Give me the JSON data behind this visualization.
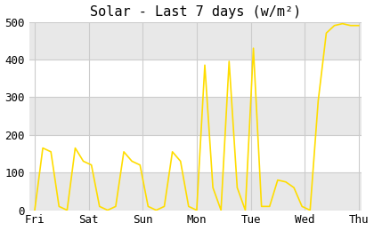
{
  "title": "Solar - Last 7 days (w/m²)",
  "line_color": "#ffdd00",
  "background_color": "#ffffff",
  "plot_bg_color": "#ffffff",
  "grid_color": "#cccccc",
  "band_color": "#e8e8e8",
  "tick_label_color": "#000000",
  "font_family": "monospace",
  "xlabels": [
    "Fri",
    "Sat",
    "Sun",
    "Mon",
    "Tue",
    "Wed",
    "Thu"
  ],
  "ylim": [
    0,
    500
  ],
  "yticks": [
    0,
    100,
    200,
    300,
    400,
    500
  ],
  "x": [
    0,
    1,
    2,
    3,
    4,
    5,
    6,
    7,
    8,
    9,
    10,
    11,
    12,
    13,
    14,
    15,
    16,
    17,
    18,
    19,
    20,
    21,
    22,
    23,
    24,
    25,
    26,
    27,
    28,
    29,
    30,
    31,
    32,
    33,
    34,
    35,
    36,
    37,
    38,
    39,
    40
  ],
  "y": [
    0,
    165,
    155,
    10,
    0,
    165,
    130,
    120,
    10,
    0,
    10,
    155,
    130,
    120,
    10,
    0,
    10,
    155,
    130,
    10,
    0,
    385,
    60,
    0,
    395,
    60,
    0,
    430,
    10,
    10,
    80,
    75,
    60,
    10,
    0,
    290,
    470,
    490,
    495,
    490,
    490
  ]
}
